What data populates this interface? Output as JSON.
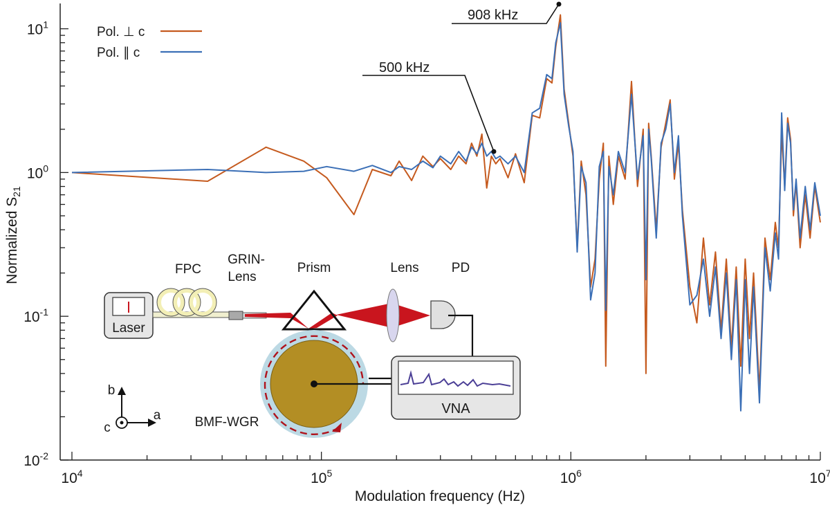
{
  "chart_data": {
    "type": "line",
    "xlabel": "Modulation frequency (Hz)",
    "ylabel": "Normalized S21",
    "xscale": "log",
    "yscale": "log",
    "xlim": [
      10000,
      10000000
    ],
    "ylim": [
      0.01,
      15
    ],
    "x_ticks": [
      {
        "value": 10000,
        "base": "10",
        "exp": "4"
      },
      {
        "value": 100000,
        "base": "10",
        "exp": "5"
      },
      {
        "value": 1000000,
        "base": "10",
        "exp": "6"
      },
      {
        "value": 10000000,
        "base": "10",
        "exp": "7"
      }
    ],
    "y_ticks": [
      {
        "value": 0.01,
        "base": "10",
        "exp": "-2"
      },
      {
        "value": 0.1,
        "base": "10",
        "exp": "-1"
      },
      {
        "value": 1,
        "base": "10",
        "exp": "0"
      },
      {
        "value": 10,
        "base": "10",
        "exp": "1"
      }
    ],
    "legend": {
      "position": "top-left"
    },
    "series": [
      {
        "name": "Pol. ⊥ c",
        "color": "#c55a1e",
        "x": [
          10000,
          35000,
          60000,
          85000,
          105000,
          135000,
          160000,
          190000,
          205000,
          230000,
          255000,
          280000,
          300000,
          330000,
          355000,
          380000,
          400000,
          420000,
          440000,
          460000,
          480000,
          500000,
          520000,
          560000,
          600000,
          650000,
          700000,
          750000,
          800000,
          840000,
          870000,
          908000,
          940000,
          980000,
          1020000,
          1060000,
          1100000,
          1150000,
          1200000,
          1250000,
          1300000,
          1350000,
          1380000,
          1420000,
          1480000,
          1550000,
          1650000,
          1750000,
          1850000,
          1950000,
          2000000,
          2050000,
          2100000,
          2200000,
          2300000,
          2400000,
          2500000,
          2600000,
          2700000,
          2800000,
          3000000,
          3200000,
          3400000,
          3600000,
          3800000,
          4000000,
          4200000,
          4400000,
          4600000,
          4800000,
          5000000,
          5200000,
          5400000,
          5700000,
          6000000,
          6300000,
          6600000,
          6800000,
          7000000,
          7200000,
          7400000,
          7600000,
          7800000,
          8000000,
          8300000,
          8700000,
          9100000,
          9500000,
          10000000
        ],
        "values": [
          1.0,
          0.87,
          1.5,
          1.2,
          0.92,
          0.51,
          1.05,
          0.95,
          1.2,
          0.88,
          1.3,
          1.1,
          1.25,
          1.05,
          1.3,
          1.15,
          1.6,
          1.3,
          1.85,
          0.78,
          1.3,
          1.15,
          1.25,
          0.92,
          1.35,
          0.85,
          2.5,
          2.4,
          4.5,
          4.2,
          7.5,
          12.5,
          3.8,
          2.2,
          1.3,
          0.3,
          1.2,
          0.7,
          0.16,
          0.25,
          0.9,
          1.6,
          0.045,
          1.3,
          0.6,
          1.3,
          0.9,
          4.3,
          0.8,
          2.0,
          0.04,
          2.2,
          1.3,
          0.4,
          1.5,
          2.2,
          3.2,
          0.9,
          1.6,
          0.55,
          0.16,
          0.09,
          0.35,
          0.12,
          0.28,
          0.08,
          0.25,
          0.06,
          0.22,
          0.045,
          0.25,
          0.07,
          0.2,
          0.03,
          0.35,
          0.18,
          0.45,
          0.3,
          1.9,
          0.8,
          2.4,
          1.7,
          0.5,
          0.85,
          0.3,
          0.7,
          0.35,
          0.8,
          0.45
        ]
      },
      {
        "name": "Pol. ∥ c",
        "color": "#3b6fb6",
        "x": [
          10000,
          35000,
          60000,
          85000,
          105000,
          135000,
          160000,
          190000,
          205000,
          230000,
          255000,
          280000,
          300000,
          330000,
          355000,
          380000,
          400000,
          420000,
          440000,
          460000,
          480000,
          500000,
          520000,
          560000,
          600000,
          650000,
          700000,
          750000,
          800000,
          840000,
          870000,
          908000,
          940000,
          980000,
          1020000,
          1060000,
          1100000,
          1150000,
          1200000,
          1250000,
          1300000,
          1350000,
          1380000,
          1420000,
          1480000,
          1550000,
          1650000,
          1750000,
          1850000,
          1950000,
          2000000,
          2050000,
          2100000,
          2200000,
          2300000,
          2400000,
          2500000,
          2600000,
          2700000,
          2800000,
          3000000,
          3200000,
          3400000,
          3600000,
          3800000,
          4000000,
          4200000,
          4400000,
          4600000,
          4800000,
          5000000,
          5200000,
          5400000,
          5700000,
          6000000,
          6300000,
          6600000,
          6800000,
          7000000,
          7200000,
          7400000,
          7600000,
          7800000,
          8000000,
          8300000,
          8700000,
          9100000,
          9500000,
          10000000
        ],
        "values": [
          1.0,
          1.05,
          1.0,
          1.02,
          1.1,
          1.02,
          1.12,
          1.0,
          1.1,
          1.05,
          1.2,
          1.08,
          1.3,
          1.15,
          1.4,
          1.2,
          1.5,
          1.35,
          1.6,
          1.3,
          1.4,
          1.25,
          1.3,
          1.15,
          1.3,
          1.0,
          2.6,
          2.8,
          4.8,
          4.5,
          8.0,
          11.0,
          3.5,
          2.1,
          1.4,
          0.28,
          1.1,
          0.85,
          0.13,
          0.2,
          1.1,
          1.4,
          0.11,
          1.1,
          0.7,
          1.4,
          1.0,
          3.5,
          0.9,
          1.8,
          0.18,
          2.0,
          1.25,
          0.35,
          1.6,
          2.0,
          3.0,
          1.0,
          1.8,
          0.5,
          0.12,
          0.14,
          0.25,
          0.1,
          0.22,
          0.07,
          0.2,
          0.05,
          0.18,
          0.022,
          0.18,
          0.04,
          0.16,
          0.025,
          0.3,
          0.15,
          0.38,
          0.25,
          2.6,
          0.75,
          2.2,
          1.6,
          0.55,
          0.9,
          0.35,
          0.8,
          0.4,
          0.85,
          0.5
        ]
      }
    ],
    "annotations": [
      {
        "text": "908 kHz",
        "x": 908000,
        "y": 13.5
      },
      {
        "text": "500 kHz",
        "x": 500000,
        "y": 1.2
      }
    ],
    "inset": {
      "labels": {
        "fpc": "FPC",
        "grin_line1": "GRIN-",
        "grin_line2": "Lens",
        "prism": "Prism",
        "lens": "Lens",
        "pd": "PD",
        "laser": "Laser",
        "vna": "VNA",
        "bmf": "BMF-WGR",
        "axis_a": "a",
        "axis_b": "b",
        "axis_c": "c"
      }
    }
  }
}
